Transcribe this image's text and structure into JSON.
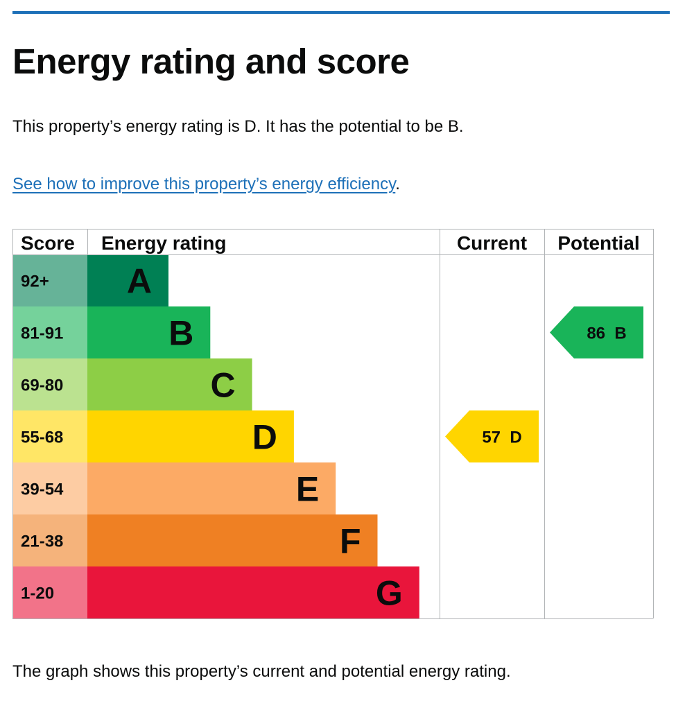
{
  "page": {
    "title": "Energy rating and score",
    "intro": "This property’s energy rating is D. It has the potential to be B.",
    "link_text": "See how to improve this property’s energy efficiency",
    "link_suffix": ".",
    "footnote": "The graph shows this property’s current and potential energy rating."
  },
  "chart_data": {
    "type": "bar",
    "columns": [
      "Score",
      "Energy rating",
      "Current",
      "Potential"
    ],
    "bands": [
      {
        "score": "92+",
        "letter": "A",
        "color": "#008054",
        "score_bg": "#66b398"
      },
      {
        "score": "81-91",
        "letter": "B",
        "color": "#19b459",
        "score_bg": "#75d29b"
      },
      {
        "score": "69-80",
        "letter": "C",
        "color": "#8dce46",
        "score_bg": "#bbe290"
      },
      {
        "score": "55-68",
        "letter": "D",
        "color": "#ffd500",
        "score_bg": "#ffe666"
      },
      {
        "score": "39-54",
        "letter": "E",
        "color": "#fcaa65",
        "score_bg": "#fdcca3"
      },
      {
        "score": "21-38",
        "letter": "F",
        "color": "#ef8023",
        "score_bg": "#f5b37b"
      },
      {
        "score": "1-20",
        "letter": "G",
        "color": "#e9153b",
        "score_bg": "#f27389"
      }
    ],
    "current": {
      "score": 57,
      "letter": "D",
      "color": "#ffd500"
    },
    "potential": {
      "score": 86,
      "letter": "B",
      "color": "#19b459"
    }
  }
}
